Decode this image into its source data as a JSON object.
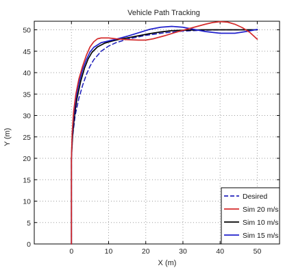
{
  "chart_data": {
    "type": "line",
    "title": "Vehicle Path Tracking",
    "xlabel": "X (m)",
    "ylabel": "Y (m)",
    "xlim": [
      -10,
      56
    ],
    "ylim": [
      0,
      52
    ],
    "xticks": [
      0,
      10,
      20,
      30,
      40,
      50
    ],
    "yticks": [
      0,
      5,
      10,
      15,
      20,
      25,
      30,
      35,
      40,
      45,
      50
    ],
    "grid": true,
    "grid_style": "dotted",
    "legend_position": "bottom-right",
    "series": [
      {
        "name": "Desired",
        "color": "#2222bb",
        "style": "dashed",
        "x": [
          0,
          0,
          0.3,
          1,
          2,
          3,
          4,
          5,
          6,
          8,
          10,
          12,
          15,
          20,
          25,
          30,
          35,
          40,
          45,
          50
        ],
        "y": [
          0,
          20,
          25,
          30,
          34,
          37,
          39.5,
          41.5,
          43,
          45,
          46.2,
          47,
          47.8,
          48.7,
          49.3,
          49.7,
          49.9,
          50,
          50,
          50
        ]
      },
      {
        "name": "Sim 20 m/s",
        "color": "#d42a2a",
        "style": "solid",
        "x": [
          0,
          0,
          0.2,
          0.6,
          1.2,
          2,
          3,
          4,
          5,
          6,
          7,
          8,
          10,
          12,
          15,
          18,
          20,
          22,
          25,
          28,
          30,
          33,
          36,
          38,
          40,
          42,
          44,
          46,
          48,
          50
        ],
        "y": [
          0,
          20,
          26,
          31,
          35,
          38.5,
          41.5,
          44,
          46,
          47.2,
          47.9,
          48.1,
          48.1,
          47.9,
          47.7,
          47.6,
          47.6,
          47.9,
          48.6,
          49.4,
          49.9,
          50.6,
          51.3,
          51.7,
          51.9,
          51.8,
          51.3,
          50.5,
          49.4,
          47.8
        ]
      },
      {
        "name": "Sim 10 m/s",
        "color": "#000000",
        "style": "solid",
        "x": [
          0,
          0,
          0.3,
          0.8,
          1.5,
          2.5,
          3.5,
          4.5,
          5.5,
          7,
          9,
          11,
          13,
          15,
          18,
          21,
          24,
          27,
          30,
          35,
          40,
          45,
          50
        ],
        "y": [
          0,
          20,
          25,
          30,
          34,
          38,
          41,
          43.2,
          44.7,
          46,
          46.9,
          47.4,
          47.8,
          48.1,
          48.6,
          49.1,
          49.5,
          49.8,
          49.9,
          50,
          50,
          50,
          50
        ]
      },
      {
        "name": "Sim 15 m/s",
        "color": "#1f1fcc",
        "style": "solid",
        "x": [
          0,
          0,
          0.2,
          0.6,
          1.2,
          2,
          3,
          4,
          5,
          6,
          8,
          10,
          12,
          15,
          18,
          21,
          24,
          27,
          30,
          33,
          36,
          40,
          44,
          47,
          50
        ],
        "y": [
          0,
          20,
          25,
          30,
          34,
          37.5,
          40.7,
          43,
          44.8,
          45.9,
          47,
          47.4,
          47.8,
          48.5,
          49.3,
          50.1,
          50.6,
          50.8,
          50.6,
          50.1,
          49.6,
          49.2,
          49.2,
          49.6,
          50.1
        ]
      }
    ]
  }
}
